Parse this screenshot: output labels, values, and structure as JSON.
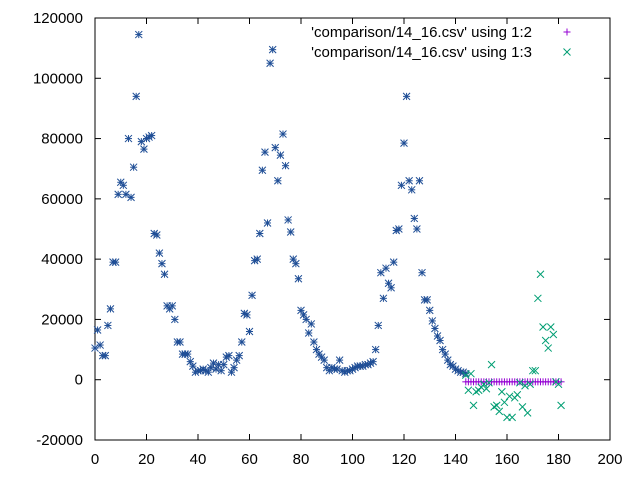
{
  "chart_data": {
    "type": "scatter",
    "title": "",
    "xlabel": "",
    "ylabel": "",
    "xlim": [
      0,
      200
    ],
    "ylim": [
      -20000,
      120000
    ],
    "xticks": [
      0,
      20,
      40,
      60,
      80,
      100,
      120,
      140,
      160,
      180,
      200
    ],
    "yticks": [
      -20000,
      0,
      20000,
      40000,
      60000,
      80000,
      100000,
      120000
    ],
    "grid": false,
    "legend_position": "top-right",
    "series": [
      {
        "name": "'comparison/14_16.csv' using 1:2",
        "marker": "plus",
        "color": "#9400d3",
        "x": [
          144,
          145,
          146,
          147,
          148,
          149,
          150,
          151,
          152,
          153,
          154,
          155,
          156,
          157,
          158,
          159,
          160,
          161,
          162,
          163,
          164,
          165,
          166,
          167,
          168,
          169,
          170,
          171,
          172,
          173,
          174,
          175,
          176,
          177,
          178,
          179,
          180,
          181
        ],
        "y": [
          -700,
          -700,
          -700,
          -700,
          -700,
          -700,
          -700,
          -700,
          -700,
          -700,
          -700,
          -700,
          -700,
          -700,
          -700,
          -700,
          -700,
          -700,
          -700,
          -700,
          -700,
          -700,
          -700,
          -700,
          -700,
          -700,
          -700,
          -700,
          -700,
          -700,
          -700,
          -700,
          -700,
          -700,
          -700,
          -700,
          -700,
          -700
        ]
      },
      {
        "name": "'comparison/14_16.csv' using 1:3",
        "marker": "cross",
        "color": "#009e73",
        "x": [
          144,
          145,
          146,
          147,
          148,
          149,
          150,
          151,
          152,
          153,
          154,
          155,
          156,
          157,
          158,
          159,
          160,
          161,
          162,
          163,
          164,
          165,
          166,
          167,
          168,
          169,
          170,
          171,
          172,
          173,
          174,
          175,
          176,
          177,
          178,
          179,
          180,
          181
        ],
        "y": [
          1500,
          -3500,
          2000,
          -8500,
          -4000,
          -3500,
          -2500,
          -1500,
          -3000,
          -1000,
          5000,
          -9000,
          -8500,
          -10500,
          -4000,
          -7500,
          -12500,
          -5500,
          -12500,
          -6000,
          -5000,
          -1000,
          -9000,
          -2000,
          -11000,
          -1500,
          3000,
          3000,
          27000,
          35000,
          17500,
          13000,
          10500,
          17500,
          15000,
          -700,
          -1500,
          -8500
        ]
      },
      {
        "name": "",
        "marker": "star",
        "color": "#1f4e96",
        "x": [
          0,
          1,
          2,
          3,
          4,
          5,
          6,
          7,
          8,
          9,
          10,
          11,
          12,
          13,
          14,
          15,
          16,
          17,
          18,
          19,
          20,
          21,
          22,
          23,
          24,
          25,
          26,
          27,
          28,
          29,
          30,
          31,
          32,
          33,
          34,
          35,
          36,
          37,
          38,
          39,
          40,
          41,
          42,
          43,
          44,
          45,
          46,
          47,
          48,
          49,
          50,
          51,
          52,
          53,
          54,
          55,
          56,
          57,
          58,
          59,
          60,
          61,
          62,
          63,
          64,
          65,
          66,
          67,
          68,
          69,
          70,
          71,
          72,
          73,
          74,
          75,
          76,
          77,
          78,
          79,
          80,
          81,
          82,
          83,
          84,
          85,
          86,
          87,
          88,
          89,
          90,
          91,
          92,
          93,
          94,
          95,
          96,
          97,
          98,
          99,
          100,
          101,
          102,
          103,
          104,
          105,
          106,
          107,
          108,
          109,
          110,
          111,
          112,
          113,
          114,
          115,
          116,
          117,
          118,
          119,
          120,
          121,
          122,
          123,
          124,
          125,
          126,
          127,
          128,
          129,
          130,
          131,
          132,
          133,
          134,
          135,
          136,
          137,
          138,
          139,
          140,
          141,
          142,
          143,
          144
        ],
        "y": [
          10500,
          16500,
          11500,
          8000,
          8000,
          18000,
          23500,
          39000,
          39000,
          61500,
          65500,
          64500,
          61500,
          80000,
          60500,
          70500,
          94000,
          114500,
          79000,
          76500,
          80000,
          80500,
          81000,
          48500,
          48000,
          42000,
          38500,
          35000,
          24500,
          23500,
          24500,
          20000,
          12500,
          12500,
          8500,
          8500,
          8500,
          6000,
          4500,
          2500,
          3000,
          3000,
          3500,
          3000,
          2500,
          4000,
          5500,
          3500,
          5000,
          3000,
          5000,
          7500,
          8000,
          2500,
          4000,
          6500,
          8000,
          12500,
          22000,
          21500,
          16000,
          28000,
          39500,
          40000,
          48500,
          69500,
          75500,
          52000,
          105000,
          109500,
          77000,
          66000,
          74500,
          81500,
          71000,
          53000,
          49000,
          40000,
          38500,
          33500,
          23000,
          21500,
          20000,
          15500,
          18500,
          12500,
          10000,
          8500,
          7500,
          6500,
          4000,
          3000,
          4000,
          3500,
          3500,
          6500,
          3000,
          2500,
          3000,
          3000,
          3500,
          4000,
          4500,
          4500,
          4500,
          5000,
          5000,
          5500,
          6000,
          10000,
          18000,
          35500,
          27000,
          37000,
          32000,
          30500,
          39000,
          49500,
          50000,
          64500,
          78500,
          94000,
          66000,
          63000,
          53500,
          50000,
          66000,
          35500,
          26500,
          26500,
          23000,
          19500,
          17000,
          14500,
          13000,
          10000,
          8500,
          6500,
          5000,
          4500,
          3500,
          3000,
          2500,
          2500,
          2000
        ]
      }
    ]
  }
}
